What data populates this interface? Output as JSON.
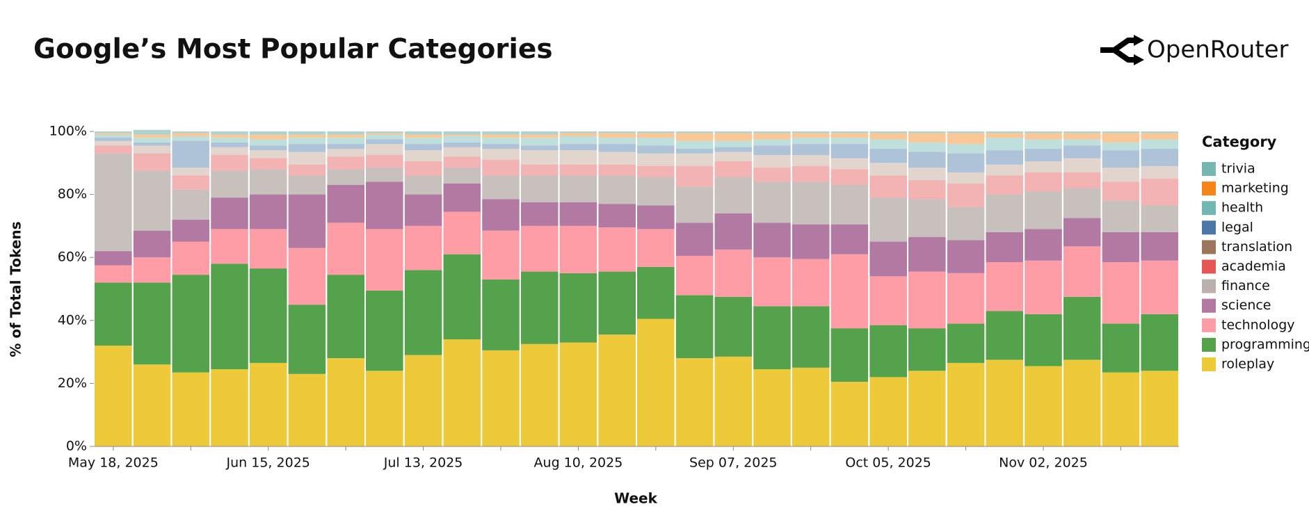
{
  "brand": "OpenRouter",
  "chart_data": {
    "type": "stacked_bar",
    "title": "Google’s Most Popular Categories",
    "x_label": "Week",
    "y_label": "% of Total Tokens",
    "legend_title": "Category",
    "legend_position": "right",
    "categories": [
      "May 18, 2025",
      null,
      null,
      null,
      "Jun 15, 2025",
      null,
      null,
      null,
      "Jul 13, 2025",
      null,
      null,
      null,
      "Aug 10, 2025",
      null,
      null,
      null,
      "Sep 07, 2025",
      null,
      null,
      null,
      "Oct 05, 2025",
      null,
      null,
      null,
      "Nov 02, 2025",
      null,
      null,
      null
    ],
    "ylim": [
      0,
      100
    ],
    "yticks": [
      {
        "value": 0,
        "label": "0%"
      },
      {
        "value": 20,
        "label": "20%"
      },
      {
        "value": 40,
        "label": "40%"
      },
      {
        "value": 60,
        "label": "60%"
      },
      {
        "value": 80,
        "label": "80%"
      },
      {
        "value": 100,
        "label": "100%"
      }
    ],
    "series": [
      {
        "name": "roleplay",
        "color": "#eeca3b",
        "opacity": 1,
        "values": [
          32,
          26,
          23.5,
          24.5,
          26.5,
          23,
          28,
          24,
          29,
          34,
          30.5,
          32.5,
          33,
          35.5,
          40.5,
          28,
          28.5,
          24.5,
          25,
          20.5,
          22,
          24,
          26.5,
          27.5,
          25.5,
          27.5,
          23.5,
          24
        ]
      },
      {
        "name": "programming",
        "color": "#54a24b",
        "opacity": 1,
        "values": [
          20,
          26,
          31,
          33.5,
          30,
          22,
          26.5,
          25.5,
          27,
          27,
          22.5,
          23,
          22,
          20,
          16.5,
          20,
          19,
          20,
          19.5,
          17,
          16.5,
          13.5,
          12.5,
          15.5,
          16.5,
          20,
          15.5,
          18
        ]
      },
      {
        "name": "technology",
        "color": "#ff9da6",
        "opacity": 1,
        "values": [
          5.5,
          8,
          10.5,
          11,
          12.5,
          18,
          16.5,
          19.5,
          14,
          13.5,
          15.5,
          14.5,
          15,
          14,
          12,
          12.5,
          15,
          15.5,
          15,
          23.5,
          15.5,
          18,
          16,
          15.5,
          17,
          16,
          19.5,
          17
        ]
      },
      {
        "name": "science",
        "color": "#b279a2",
        "opacity": 1,
        "values": [
          4.5,
          8.5,
          7,
          10,
          11,
          17,
          12,
          15,
          10,
          9,
          10,
          7.5,
          7.5,
          7.5,
          7.5,
          10.5,
          11.5,
          11,
          11,
          9.5,
          11,
          11,
          10.5,
          9.5,
          10,
          9,
          9.5,
          9
        ]
      },
      {
        "name": "finance",
        "color": "#bab0ac",
        "opacity": 0.8,
        "values": [
          31,
          19,
          9.5,
          8.5,
          8,
          6,
          5,
          4.5,
          6,
          5,
          7.5,
          8.5,
          8.5,
          9,
          9,
          11.5,
          11.5,
          13,
          13.5,
          12.5,
          14,
          12,
          10.5,
          12,
          12,
          9.5,
          10,
          8.5
        ]
      },
      {
        "name": "academia",
        "color": "#e45756",
        "opacity": 0.45,
        "values": [
          2.5,
          5.5,
          4.5,
          5,
          3.5,
          3.5,
          4,
          4,
          4.5,
          3.5,
          5,
          3.5,
          3.5,
          3.5,
          3.5,
          6.5,
          5,
          4.5,
          5,
          5,
          7,
          6,
          7.5,
          6,
          6,
          5,
          6,
          8.5
        ]
      },
      {
        "name": "translation",
        "color": "#9d755d",
        "opacity": 0.3,
        "values": [
          1.5,
          2.5,
          2.5,
          2.5,
          2.5,
          4,
          2.5,
          3.5,
          3.5,
          3,
          3.5,
          4.5,
          4.5,
          4,
          4,
          4,
          3,
          4,
          3.5,
          3.5,
          4,
          4,
          3.5,
          3.5,
          3.5,
          4.5,
          4.5,
          4
        ]
      },
      {
        "name": "legal",
        "color": "#4c78a8",
        "opacity": 0.45,
        "values": [
          1,
          1,
          8.5,
          1.5,
          1.5,
          2.5,
          1.5,
          1.5,
          2,
          1.5,
          1.5,
          1.5,
          2,
          2.5,
          2.5,
          1.5,
          1.5,
          3,
          3.5,
          4.5,
          4.5,
          5,
          6,
          4.5,
          4,
          4,
          5.5,
          5.5
        ]
      },
      {
        "name": "health",
        "color": "#72b7b2",
        "opacity": 0.45,
        "values": [
          1,
          1.5,
          1.5,
          1.5,
          2,
          2,
          2,
          1.5,
          2,
          2,
          2,
          2.5,
          2.5,
          2,
          2.5,
          2.5,
          2,
          2,
          2,
          2,
          3,
          3,
          3,
          4,
          3,
          2,
          2.5,
          3
        ]
      },
      {
        "name": "marketing",
        "color": "#f58518",
        "opacity": 0.45,
        "values": [
          0.5,
          1,
          1,
          1,
          1.5,
          1,
          1,
          0.5,
          1,
          0.5,
          1,
          1,
          1,
          1.5,
          1.5,
          2.5,
          2.5,
          2,
          1.5,
          1.5,
          2,
          3,
          3.5,
          1.5,
          2,
          2,
          3,
          2
        ]
      },
      {
        "name": "trivia",
        "color": "#76b7b2",
        "opacity": 0.6,
        "values": [
          0.5,
          1.5,
          0.5,
          1,
          1,
          1,
          1,
          0.5,
          1,
          1,
          1,
          1,
          0.5,
          0.5,
          0.5,
          0.5,
          0.5,
          0.5,
          0.5,
          0.5,
          0.5,
          0.5,
          0.5,
          0.5,
          0.5,
          0.5,
          0.5,
          0.5
        ]
      }
    ]
  }
}
